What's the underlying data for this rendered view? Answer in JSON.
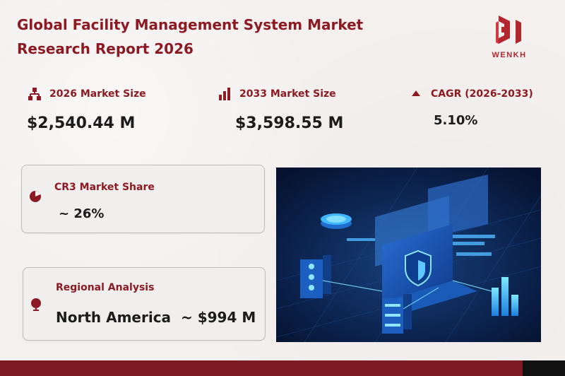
{
  "title": "Global Facility Management System Market Research Report 2026",
  "logo": {
    "text": "WENKH"
  },
  "stats": [
    {
      "icon": "org-chart-icon",
      "label": "2026 Market Size",
      "value": "$2,540.44 M"
    },
    {
      "icon": "bar-chart-icon",
      "label": "2033 Market Size",
      "value": "$3,598.55 M"
    },
    {
      "icon": "triangle-up-icon",
      "label": "CAGR (2026-2033)",
      "value": "5.10%"
    }
  ],
  "cr3": {
    "icon": "pie-chart-icon",
    "label": "CR3 Market Share",
    "value": "~ 26%"
  },
  "regional": {
    "icon": "globe-icon",
    "label": "Regional Analysis",
    "value": "North America  ~ $994 M"
  },
  "colors": {
    "accent": "#8c1a23",
    "footer": "#7d1a23",
    "hero_bg": "#0b1a3a"
  }
}
